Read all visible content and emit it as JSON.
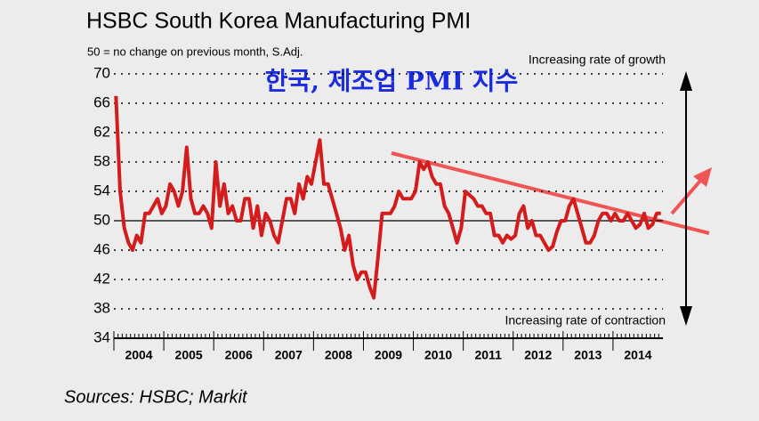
{
  "chart_data": {
    "type": "line",
    "title": "HSBC South Korea Manufacturing PMI",
    "subtitle": "50 = no change on previous month, S.Adj.",
    "annotations": [
      "Increasing rate of growth",
      "Increasing rate of contraction",
      "한국, 제조업 PMI 지수"
    ],
    "source": "Sources: HSBC; Markit",
    "categories": [
      "2004",
      null,
      null,
      null,
      null,
      null,
      null,
      null,
      null,
      null,
      null,
      null,
      "2005",
      null,
      null,
      null,
      null,
      null,
      null,
      null,
      null,
      null,
      null,
      null,
      "2006",
      null,
      null,
      null,
      null,
      null,
      null,
      null,
      null,
      null,
      null,
      null,
      "2007",
      null,
      null,
      null,
      null,
      null,
      null,
      null,
      null,
      null,
      null,
      null,
      "2008",
      null,
      null,
      null,
      null,
      null,
      null,
      null,
      null,
      null,
      null,
      null,
      "2009",
      null,
      null,
      null,
      null,
      null,
      null,
      null,
      null,
      null,
      null,
      null,
      "2010",
      null,
      null,
      null,
      null,
      null,
      null,
      null,
      null,
      null,
      null,
      null,
      "2011",
      null,
      null,
      null,
      null,
      null,
      null,
      null,
      null,
      null,
      null,
      null,
      "2012",
      null,
      null,
      null,
      null,
      null,
      null,
      null,
      null,
      null,
      null,
      null,
      "2013",
      null,
      null,
      null,
      null,
      null,
      null,
      null,
      null,
      null,
      null,
      null,
      "2014",
      null,
      null,
      null,
      null,
      null,
      null,
      null,
      null,
      null,
      null,
      null
    ],
    "series": [
      {
        "name": "PMI",
        "color": "#d41c1c",
        "values": [
          67,
          54,
          49,
          47,
          46,
          48,
          47,
          51,
          51,
          52,
          53,
          51,
          52,
          55,
          54,
          52,
          54,
          60,
          53,
          51,
          51,
          52,
          51,
          49,
          58,
          52,
          55,
          51,
          52,
          50,
          50,
          53,
          53,
          49,
          52,
          48,
          51,
          50,
          48,
          47,
          50,
          53,
          53,
          51,
          55,
          53,
          56,
          55,
          58,
          61,
          55,
          55,
          53,
          51,
          49,
          46,
          48,
          44,
          42,
          43,
          43,
          41,
          39.5,
          45,
          51,
          51,
          51,
          52,
          54,
          53,
          53,
          53,
          54,
          58,
          57,
          58,
          56,
          55,
          55,
          52,
          51,
          49,
          47,
          49,
          54,
          53.5,
          53,
          52,
          52,
          51,
          51,
          48,
          48,
          47,
          48,
          47.5,
          48,
          51,
          52,
          49,
          50,
          48,
          48,
          47,
          46,
          46.5,
          48.5,
          50,
          50,
          52,
          53,
          51,
          49,
          47,
          47,
          48,
          50,
          51,
          51,
          50,
          51,
          50,
          50,
          51,
          50,
          49,
          49.5,
          51,
          49,
          49.5,
          51,
          51
        ]
      }
    ],
    "ylim": [
      34,
      70
    ],
    "yticks": [
      34,
      38,
      42,
      46,
      50,
      54,
      58,
      62,
      66,
      70
    ],
    "grid": true
  }
}
